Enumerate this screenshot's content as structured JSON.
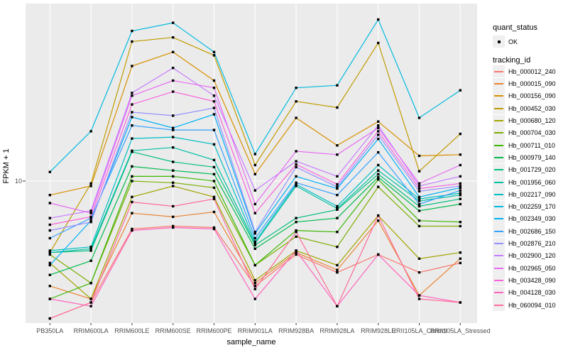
{
  "figure": {
    "background": "#FFFFFF",
    "panel_background": "#EBEBEB",
    "gridline_color": "#FFFFFF",
    "point_color": "#000000",
    "axis_text_color": "#4D4D4D"
  },
  "legend": {
    "quant_status": {
      "title": "quant_status",
      "items": [
        {
          "label": "OK",
          "marker": "black-point"
        }
      ]
    },
    "tracking_id": {
      "title": "tracking_id"
    }
  },
  "chart_data": {
    "type": "line",
    "title": "",
    "xlabel": "sample_name",
    "ylabel": "FPKM + 1",
    "y_scale": "log10",
    "y_ticks": [
      {
        "value": 10,
        "label": "10"
      }
    ],
    "legend_position": "right",
    "marker": "small-black-square",
    "quant_status_all": "OK",
    "categories": [
      "PB350LA",
      "RRIM600LA",
      "RRIM600LE",
      "RRIM600SE",
      "RRIM600PE",
      "RRIM901LA",
      "RRIM928BA",
      "RRIM928LA",
      "RRIM928LE",
      "RRII105LA_Control",
      "RRII105LA_Stressed"
    ],
    "series": [
      {
        "name": "Hb_000012_240",
        "color": "#F8766D",
        "values": [
          1.8,
          2.2,
          5.5,
          5.7,
          5.6,
          2.7,
          4.0,
          3.2,
          4.0,
          3.2,
          3.6
        ]
      },
      {
        "name": "Hb_000015_090",
        "color": "#EA8331",
        "values": [
          2.7,
          2.3,
          6.7,
          6.4,
          6.8,
          2.8,
          4.1,
          3.3,
          6.1,
          2.4,
          3.8
        ]
      },
      {
        "name": "Hb_000156_090",
        "color": "#D89000",
        "values": [
          8.4,
          9.4,
          42.0,
          50.0,
          35.0,
          10.9,
          22.0,
          15.6,
          21.0,
          13.7,
          13.9
        ]
      },
      {
        "name": "Hb_000452_030",
        "color": "#C09B00",
        "values": [
          4.1,
          9.7,
          57.0,
          60.0,
          48.0,
          12.2,
          27.0,
          25.0,
          56.0,
          11.3,
          18.0
        ]
      },
      {
        "name": "Hb_000680_120",
        "color": "#A3A500",
        "values": [
          3.6,
          2.3,
          8.2,
          9.4,
          8.2,
          2.9,
          4.2,
          3.5,
          6.5,
          3.8,
          4.1
        ]
      },
      {
        "name": "Hb_000704_030",
        "color": "#7CAE00",
        "values": [
          4.0,
          2.8,
          10.0,
          9.8,
          9.2,
          3.5,
          5.0,
          4.4,
          9.3,
          5.7,
          5.7
        ]
      },
      {
        "name": "Hb_000711_010",
        "color": "#39B600",
        "values": [
          2.3,
          2.8,
          10.6,
          10.6,
          10.0,
          3.5,
          5.4,
          5.3,
          10.2,
          6.1,
          6.0
        ]
      },
      {
        "name": "Hb_000979_140",
        "color": "#00BB4E",
        "values": [
          3.1,
          3.7,
          12.0,
          11.4,
          10.9,
          4.3,
          6.0,
          6.3,
          10.5,
          6.9,
          7.5
        ]
      },
      {
        "name": "Hb_001729_020",
        "color": "#00BF7D",
        "values": [
          4.1,
          4.2,
          14.4,
          12.7,
          11.9,
          4.5,
          6.3,
          7.0,
          10.9,
          7.3,
          8.0
        ]
      },
      {
        "name": "Hb_001956_060",
        "color": "#00C1A3",
        "values": [
          4.1,
          4.3,
          14.6,
          15.2,
          13.0,
          4.6,
          9.4,
          7.1,
          11.4,
          7.8,
          8.4
        ]
      },
      {
        "name": "Hb_002217_090",
        "color": "#00BFC4",
        "values": [
          4.2,
          4.4,
          17.0,
          17.3,
          15.8,
          4.7,
          9.6,
          7.3,
          12.2,
          8.0,
          8.6
        ]
      },
      {
        "name": "Hb_002259_170",
        "color": "#00BAE0",
        "values": [
          11.2,
          18.6,
          65.0,
          72.0,
          50.0,
          14.0,
          32.0,
          33.0,
          75.0,
          22.0,
          31.0
        ]
      },
      {
        "name": "Hb_002349_030",
        "color": "#00B0F6",
        "values": [
          3.5,
          6.1,
          22.2,
          19.4,
          23.0,
          5.2,
          10.6,
          9.1,
          16.9,
          8.2,
          9.2
        ]
      },
      {
        "name": "Hb_002686_150",
        "color": "#35A2FF",
        "values": [
          4.9,
          6.3,
          20.0,
          18.9,
          18.9,
          4.9,
          9.8,
          8.4,
          14.3,
          7.5,
          8.9
        ]
      },
      {
        "name": "Hb_002876_210",
        "color": "#9590FF",
        "values": [
          5.4,
          6.0,
          23.6,
          22.6,
          24.9,
          5.3,
          11.9,
          9.3,
          17.8,
          8.8,
          9.4
        ]
      },
      {
        "name": "Hb_002900_120",
        "color": "#C77CFF",
        "values": [
          6.3,
          6.9,
          30.0,
          41.0,
          29.0,
          8.9,
          12.8,
          10.6,
          20.0,
          9.4,
          10.6
        ]
      },
      {
        "name": "Hb_002965_050",
        "color": "#E76BF3",
        "values": [
          7.6,
          6.7,
          29.0,
          35.0,
          32.0,
          7.5,
          14.5,
          13.9,
          19.4,
          9.7,
          12.2
        ]
      },
      {
        "name": "Hb_003428_090",
        "color": "#FA62DB",
        "values": [
          5.8,
          6.4,
          26.0,
          30.5,
          27.0,
          6.7,
          12.3,
          9.6,
          18.6,
          9.1,
          9.7
        ]
      },
      {
        "name": "Hb_004128_030",
        "color": "#FF62BC",
        "values": [
          2.3,
          2.1,
          5.4,
          5.6,
          5.5,
          2.3,
          4.2,
          2.1,
          4.0,
          2.4,
          2.2
        ]
      },
      {
        "name": "Hb_060094_010",
        "color": "#FF6A98",
        "values": [
          1.8,
          2.2,
          7.7,
          7.3,
          8.0,
          2.6,
          5.3,
          2.1,
          6.5,
          2.3,
          2.2
        ]
      }
    ]
  }
}
